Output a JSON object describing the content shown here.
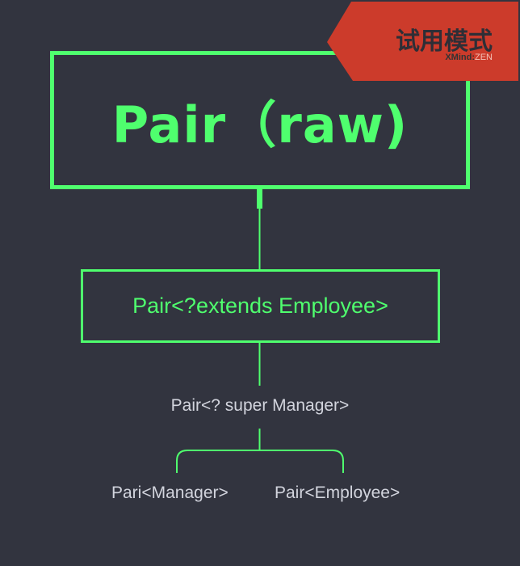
{
  "diagram": {
    "root": {
      "label": "Pair（raw)"
    },
    "child": {
      "label": "Pair<?extends Employee>"
    },
    "grandchild": {
      "label": "Pair<? super Manager>"
    },
    "leaves": [
      {
        "label": "Pari<Manager>"
      },
      {
        "label": "Pair<Employee>"
      }
    ]
  },
  "watermark": {
    "trial_label": "试用模式",
    "brand": "XMind",
    "edition": "ZEN"
  },
  "colors": {
    "background": "#32343f",
    "accent": "#4fff6e",
    "banner": "#cc3b2b",
    "text": "#d2d4dd"
  }
}
